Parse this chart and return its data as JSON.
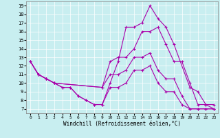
{
  "xlabel": "Windchill (Refroidissement éolien,°C)",
  "bg_color": "#c8eef0",
  "line_color": "#aa00aa",
  "xlim": [
    -0.5,
    23.5
  ],
  "ylim": [
    6.5,
    19.5
  ],
  "xticks": [
    0,
    1,
    2,
    3,
    4,
    5,
    6,
    7,
    8,
    9,
    10,
    11,
    12,
    13,
    14,
    15,
    16,
    17,
    18,
    19,
    20,
    21,
    22,
    23
  ],
  "yticks": [
    7,
    8,
    9,
    10,
    11,
    12,
    13,
    14,
    15,
    16,
    17,
    18,
    19
  ],
  "lines": [
    {
      "x": [
        0,
        1,
        2,
        3,
        4,
        5,
        6,
        7,
        8,
        9,
        10,
        11,
        12,
        13,
        14,
        15,
        16,
        17,
        18,
        20,
        21,
        22,
        23
      ],
      "y": [
        12.5,
        11.0,
        10.5,
        10.0,
        9.5,
        9.5,
        8.5,
        8.0,
        7.5,
        7.5,
        10.0,
        12.5,
        16.5,
        16.5,
        17.0,
        19.0,
        17.5,
        16.5,
        14.5,
        9.5,
        9.0,
        7.5,
        7.5
      ]
    },
    {
      "x": [
        0,
        1,
        2,
        3,
        9,
        10,
        11,
        12,
        13,
        14,
        15,
        16,
        17,
        18,
        19,
        20,
        21,
        22,
        23
      ],
      "y": [
        12.5,
        11.0,
        10.5,
        10.0,
        9.5,
        12.5,
        13.0,
        13.0,
        14.0,
        16.0,
        16.0,
        16.5,
        14.5,
        12.5,
        12.5,
        10.0,
        7.5,
        7.5,
        7.0
      ]
    },
    {
      "x": [
        0,
        1,
        2,
        3,
        9,
        10,
        11,
        12,
        13,
        14,
        15,
        16,
        17,
        18,
        19,
        20,
        21,
        22,
        23
      ],
      "y": [
        12.5,
        11.0,
        10.5,
        10.0,
        9.5,
        11.0,
        11.0,
        11.5,
        13.0,
        13.0,
        13.5,
        11.5,
        10.5,
        10.5,
        8.5,
        7.0,
        7.0,
        7.0,
        7.0
      ]
    },
    {
      "x": [
        0,
        1,
        2,
        3,
        4,
        5,
        6,
        7,
        8,
        9,
        10,
        11,
        12,
        13,
        14,
        15,
        16,
        17,
        18,
        19,
        20,
        21,
        22,
        23
      ],
      "y": [
        12.5,
        11.0,
        10.5,
        10.0,
        9.5,
        9.5,
        8.5,
        8.0,
        7.5,
        7.5,
        9.5,
        9.5,
        10.0,
        11.5,
        11.5,
        12.0,
        10.0,
        9.0,
        9.0,
        7.5,
        7.0,
        7.0,
        7.0,
        7.0
      ]
    }
  ]
}
